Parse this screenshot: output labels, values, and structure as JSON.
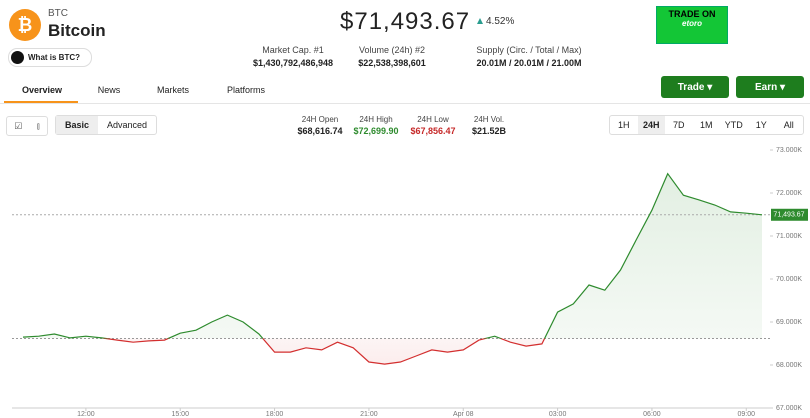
{
  "header": {
    "symbol": "BTC",
    "name": "Bitcoin",
    "what_is": "What is BTC?",
    "price": "$71,493.67",
    "change": "4.52%"
  },
  "ad": {
    "line1": "TRADE ON",
    "brand": "etoro"
  },
  "stats": [
    {
      "label": "Market Cap. #1",
      "value": "$1,430,792,486,948"
    },
    {
      "label": "Volume (24h) #2",
      "value": "$22,538,398,601"
    },
    {
      "label": "Supply (Circ. / Total / Max)",
      "value": "20.01M / 20.01M / 21.00M"
    }
  ],
  "tabs": [
    "Overview",
    "News",
    "Markets",
    "Platforms"
  ],
  "buttons": {
    "trade": "Trade",
    "earn": "Earn"
  },
  "modes": [
    "Basic",
    "Advanced"
  ],
  "day_stats": [
    {
      "label": "24H Open",
      "value": "$68,616.74",
      "color": "#222222"
    },
    {
      "label": "24H High",
      "value": "$72,699.90",
      "color": "#2e8b2e"
    },
    {
      "label": "24H Low",
      "value": "$67,856.47",
      "color": "#c62828"
    },
    {
      "label": "24H Vol.",
      "value": "$21.52B",
      "color": "#222222"
    }
  ],
  "ranges": [
    "1H",
    "24H",
    "7D",
    "1M",
    "YTD",
    "1Y",
    "All"
  ],
  "active_range": 1,
  "chart_data": {
    "type": "line",
    "categories": [
      null,
      null,
      null,
      null,
      "12:00",
      null,
      null,
      null,
      null,
      null,
      "15:00",
      null,
      null,
      null,
      null,
      null,
      "18:00",
      null,
      null,
      null,
      null,
      null,
      "21:00",
      null,
      null,
      null,
      null,
      null,
      "Apr 08",
      null,
      null,
      null,
      null,
      null,
      "03:00",
      null,
      null,
      null,
      null,
      null,
      "06:00",
      null,
      null,
      null,
      null,
      null,
      "09:00",
      null
    ],
    "values": [
      68650,
      68670,
      68720,
      68630,
      68670,
      68630,
      68580,
      68530,
      68560,
      68580,
      68740,
      68810,
      69000,
      69160,
      69000,
      68720,
      68300,
      68300,
      68400,
      68350,
      68530,
      68400,
      68070,
      68020,
      68070,
      68210,
      68350,
      68300,
      68350,
      68580,
      68670,
      68530,
      68440,
      68490,
      69230,
      69420,
      69860,
      69740,
      70210,
      70910,
      71600,
      72450,
      71950,
      71840,
      71720,
      71560,
      71530,
      71493.67
    ],
    "ylim": [
      67000,
      73000
    ],
    "yticks": [
      {
        "value": 67000,
        "label": "67.000K"
      },
      {
        "value": 68000,
        "label": "68.000K"
      },
      {
        "value": 69000,
        "label": "69.000K"
      },
      {
        "value": 70000,
        "label": "70.000K"
      },
      {
        "value": 71000,
        "label": "71.000K"
      },
      {
        "value": 72000,
        "label": "72.000K"
      },
      {
        "value": 73000,
        "label": "73.000K"
      }
    ],
    "baseline": 68616.74,
    "last_label": "71,493.67",
    "up_color": "#2e8b2e",
    "down_color": "#d32f2f"
  }
}
